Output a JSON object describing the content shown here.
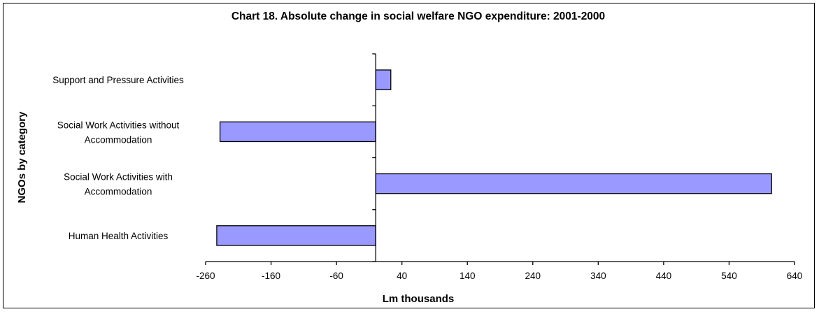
{
  "chart_data": {
    "type": "bar",
    "orientation": "horizontal",
    "title": "Chart 18.  Absolute change in social welfare NGO expenditure: 2001-2000",
    "xlabel": "Lm thousands",
    "ylabel": "NGOs by category",
    "xlim": [
      -260,
      640
    ],
    "xticks": [
      -260,
      -160,
      -60,
      40,
      140,
      240,
      340,
      440,
      540,
      640
    ],
    "tick_labels": [
      "-260",
      "-160",
      "-60",
      "40",
      "140",
      "240",
      "340",
      "440",
      "540",
      "640"
    ],
    "categories": [
      [
        "Support and Pressure Activities"
      ],
      [
        "Social Work Activities without",
        "Accommodation"
      ],
      [
        "Social Work Activities with",
        "Accommodation"
      ],
      [
        "Human Health Activities"
      ]
    ],
    "values": [
      23,
      -238,
      605,
      -243
    ],
    "bar_color": "#9999ff",
    "grid": false,
    "legend": "none"
  }
}
